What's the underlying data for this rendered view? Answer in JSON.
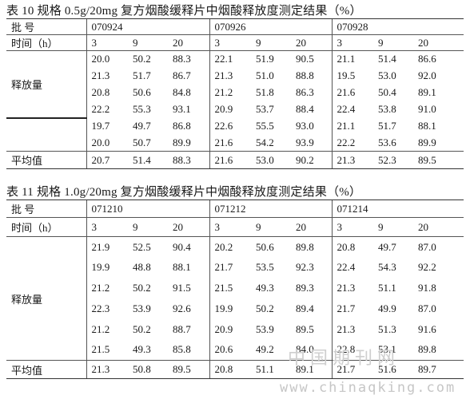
{
  "table10": {
    "caption": "表 10   规格 0.5g/20mg 复方烟酸缓释片中烟酸释放度测定结果（%）",
    "batch_label": "批 号",
    "time_label": "时间（h）",
    "release_label": "释放量",
    "avg_label": "平均值",
    "batches": [
      "070924",
      "070926",
      "070928"
    ],
    "times": [
      "3",
      "9",
      "20"
    ],
    "rows": [
      [
        "20.0",
        "50.2",
        "88.3",
        "22.1",
        "51.9",
        "90.5",
        "21.1",
        "51.4",
        "86.6"
      ],
      [
        "21.3",
        "51.7",
        "86.7",
        "21.3",
        "51.0",
        "88.8",
        "19.5",
        "53.0",
        "92.0"
      ],
      [
        "20.8",
        "50.6",
        "84.8",
        "21.2",
        "51.8",
        "86.3",
        "21.6",
        "50.4",
        "89.1"
      ],
      [
        "22.2",
        "55.3",
        "93.1",
        "20.9",
        "53.7",
        "88.4",
        "22.4",
        "53.8",
        "91.0"
      ],
      [
        "19.7",
        "49.7",
        "86.8",
        "22.6",
        "55.5",
        "93.0",
        "21.1",
        "51.7",
        "88.1"
      ],
      [
        "20.0",
        "50.7",
        "89.9",
        "21.6",
        "54.2",
        "93.9",
        "22.2",
        "53.6",
        "89.9"
      ]
    ],
    "avg": [
      "20.7",
      "51.4",
      "88.3",
      "21.6",
      "53.0",
      "90.2",
      "21.3",
      "52.3",
      "89.5"
    ]
  },
  "table11": {
    "caption": "表 11 规格 1.0g/20mg 复方烟酸缓释片中烟酸释放度测定结果（%）",
    "batch_label": "批 号",
    "time_label": "时间（h）",
    "release_label": "释放量",
    "avg_label": "平均值",
    "batches": [
      "071210",
      "071212",
      "071214"
    ],
    "times": [
      "3",
      "9",
      "20"
    ],
    "rows": [
      [
        "21.9",
        "52.5",
        "90.4",
        "20.2",
        "50.6",
        "89.8",
        "20.8",
        "49.7",
        "87.0"
      ],
      [
        "19.9",
        "48.8",
        "88.1",
        "21.7",
        "53.5",
        "92.3",
        "22.4",
        "54.3",
        "92.2"
      ],
      [
        "21.2",
        "50.2",
        "91.5",
        "21.5",
        "49.3",
        "89.3",
        "21.3",
        "51.1",
        "91.8"
      ],
      [
        "22.3",
        "53.9",
        "92.6",
        "19.9",
        "50.2",
        "89.4",
        "21.7",
        "49.9",
        "87.0"
      ],
      [
        "21.2",
        "50.2",
        "88.7",
        "20.9",
        "53.9",
        "89.5",
        "21.3",
        "51.3",
        "91.6"
      ],
      [
        "21.5",
        "49.3",
        "85.8",
        "20.6",
        "49.2",
        "84.0",
        "22.8",
        "53.1",
        "89.8"
      ]
    ],
    "avg": [
      "21.3",
      "50.8",
      "89.5",
      "20.8",
      "51.1",
      "89.1",
      "21.7",
      "51.6",
      "89.7"
    ]
  },
  "watermark": {
    "line1": "中国期刊网",
    "line2": "www.chinaqking.com"
  }
}
